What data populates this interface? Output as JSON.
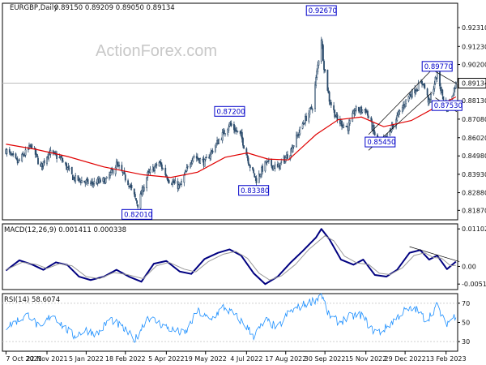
{
  "watermark": "ActionForex.com",
  "chart_data": [
    {
      "type": "candlestick",
      "title": "EURGBP,Daily",
      "ohlc_text": "0.89150 0.89209 0.89050 0.89134",
      "ylim": [
        0.8133,
        0.937
      ],
      "y_ticks": [
        "0.92310",
        "0.91230",
        "0.90200",
        "0.89134",
        "0.88130",
        "0.87080",
        "0.86020",
        "0.84980",
        "0.83930",
        "0.82880",
        "0.81870"
      ],
      "last_price": 0.89134,
      "x_ticks": [
        "7 Oct 2021",
        "22 Nov 2021",
        "5 Jan 2022",
        "18 Feb 2022",
        "5 Apr 2022",
        "19 May 2022",
        "4 Jul 2022",
        "17 Aug 2022",
        "30 Sep 2022",
        "15 Nov 2022",
        "29 Dec 2022",
        "13 Feb 2023"
      ],
      "annotations": [
        {
          "text": "0.82010",
          "x_date": "2022-03-03",
          "y": 0.8201
        },
        {
          "text": "0.87200",
          "x_date": "2022-06-15",
          "y": 0.872
        },
        {
          "text": "0.83380",
          "x_date": "2022-07-12",
          "y": 0.8338
        },
        {
          "text": "0.92670",
          "x_date": "2022-09-26",
          "y": 0.9267
        },
        {
          "text": "0.85450",
          "x_date": "2022-12-01",
          "y": 0.8545
        },
        {
          "text": "0.89770",
          "x_date": "2023-02-03",
          "y": 0.8977
        },
        {
          "text": "0.87530",
          "x_date": "2023-02-14",
          "y": 0.8753
        }
      ],
      "series": [
        {
          "type": "candles",
          "color": "#2c4c6c",
          "path": [
            [
              "2021-10-07",
              0.853
            ],
            [
              "2021-10-20",
              0.846
            ],
            [
              "2021-11-05",
              0.856
            ],
            [
              "2021-11-15",
              0.843
            ],
            [
              "2021-11-24",
              0.852
            ],
            [
              "2021-12-08",
              0.848
            ],
            [
              "2021-12-22",
              0.837
            ],
            [
              "2022-01-10",
              0.834
            ],
            [
              "2022-01-28",
              0.836
            ],
            [
              "2022-02-08",
              0.845
            ],
            [
              "2022-02-22",
              0.834
            ],
            [
              "2022-03-04",
              0.822
            ],
            [
              "2022-03-15",
              0.839
            ],
            [
              "2022-03-28",
              0.846
            ],
            [
              "2022-04-08",
              0.836
            ],
            [
              "2022-04-20",
              0.832
            ],
            [
              "2022-05-05",
              0.85
            ],
            [
              "2022-05-18",
              0.846
            ],
            [
              "2022-06-02",
              0.858
            ],
            [
              "2022-06-15",
              0.868
            ],
            [
              "2022-06-28",
              0.861
            ],
            [
              "2022-07-08",
              0.844
            ],
            [
              "2022-07-15",
              0.836
            ],
            [
              "2022-07-26",
              0.846
            ],
            [
              "2022-08-08",
              0.843
            ],
            [
              "2022-08-22",
              0.852
            ],
            [
              "2022-09-05",
              0.868
            ],
            [
              "2022-09-16",
              0.878
            ],
            [
              "2022-09-26",
              0.917
            ],
            [
              "2022-09-29",
              0.901
            ],
            [
              "2022-10-05",
              0.882
            ],
            [
              "2022-10-14",
              0.87
            ],
            [
              "2022-10-26",
              0.866
            ],
            [
              "2022-11-03",
              0.876
            ],
            [
              "2022-11-15",
              0.876
            ],
            [
              "2022-11-25",
              0.862
            ],
            [
              "2022-12-01",
              0.856
            ],
            [
              "2022-12-09",
              0.861
            ],
            [
              "2022-12-20",
              0.872
            ],
            [
              "2023-01-02",
              0.884
            ],
            [
              "2023-01-10",
              0.888
            ],
            [
              "2023-01-18",
              0.892
            ],
            [
              "2023-01-25",
              0.88
            ],
            [
              "2023-02-03",
              0.897
            ],
            [
              "2023-02-08",
              0.886
            ],
            [
              "2023-02-14",
              0.877
            ],
            [
              "2023-02-20",
              0.885
            ],
            [
              "2023-02-24",
              0.891
            ]
          ]
        },
        {
          "type": "line",
          "name": "moving average",
          "color": "#e00000",
          "points": [
            [
              "2021-10-07",
              0.8565
            ],
            [
              "2021-11-10",
              0.8535
            ],
            [
              "2021-12-15",
              0.8495
            ],
            [
              "2022-01-25",
              0.8435
            ],
            [
              "2022-03-10",
              0.839
            ],
            [
              "2022-04-10",
              0.8375
            ],
            [
              "2022-05-10",
              0.8405
            ],
            [
              "2022-06-10",
              0.849
            ],
            [
              "2022-07-05",
              0.8515
            ],
            [
              "2022-07-28",
              0.848
            ],
            [
              "2022-08-20",
              0.8475
            ],
            [
              "2022-09-20",
              0.862
            ],
            [
              "2022-10-15",
              0.8705
            ],
            [
              "2022-11-10",
              0.872
            ],
            [
              "2022-12-05",
              0.8665
            ],
            [
              "2023-01-05",
              0.87
            ],
            [
              "2023-02-01",
              0.8775
            ],
            [
              "2023-02-24",
              0.8835
            ]
          ]
        },
        {
          "type": "channel",
          "color": "#000000",
          "lines": [
            [
              [
                "2022-11-18",
                0.862
              ],
              [
                "2023-01-28",
                0.899
              ]
            ],
            [
              [
                "2022-11-18",
                0.853
              ],
              [
                "2023-01-28",
                0.886
              ]
            ],
            [
              [
                "2023-02-01",
                0.898
              ],
              [
                "2023-02-25",
                0.891
              ]
            ],
            [
              [
                "2023-02-01",
                0.883
              ],
              [
                "2023-02-25",
                0.875
              ]
            ]
          ]
        }
      ]
    },
    {
      "type": "line",
      "title": "MACD(12,26,9) 0.001411 0.000338",
      "ylim": [
        -0.0068,
        0.0125
      ],
      "y_ticks": [
        "0.011023",
        "0.00",
        "-0.005182"
      ],
      "series": [
        {
          "name": "MACD",
          "color": "#000080",
          "points": [
            [
              "2021-10-07",
              -0.0012
            ],
            [
              "2021-10-22",
              0.0018
            ],
            [
              "2021-11-05",
              0.0006
            ],
            [
              "2021-11-18",
              -0.001
            ],
            [
              "2021-12-02",
              0.0012
            ],
            [
              "2021-12-15",
              0.0004
            ],
            [
              "2021-12-28",
              -0.003
            ],
            [
              "2022-01-10",
              -0.004
            ],
            [
              "2022-01-25",
              -0.003
            ],
            [
              "2022-02-08",
              -0.001
            ],
            [
              "2022-02-22",
              -0.003
            ],
            [
              "2022-03-08",
              -0.0045
            ],
            [
              "2022-03-22",
              0.0008
            ],
            [
              "2022-04-05",
              0.0016
            ],
            [
              "2022-04-20",
              -0.0015
            ],
            [
              "2022-05-03",
              -0.0022
            ],
            [
              "2022-05-18",
              0.0022
            ],
            [
              "2022-06-02",
              0.004
            ],
            [
              "2022-06-15",
              0.005
            ],
            [
              "2022-06-28",
              0.0032
            ],
            [
              "2022-07-12",
              -0.002
            ],
            [
              "2022-07-25",
              -0.0052
            ],
            [
              "2022-08-08",
              -0.003
            ],
            [
              "2022-08-22",
              0.001
            ],
            [
              "2022-09-05",
              0.0045
            ],
            [
              "2022-09-20",
              0.0085
            ],
            [
              "2022-09-26",
              0.011
            ],
            [
              "2022-10-05",
              0.008
            ],
            [
              "2022-10-18",
              0.002
            ],
            [
              "2022-11-01",
              0.0005
            ],
            [
              "2022-11-12",
              0.002
            ],
            [
              "2022-11-25",
              -0.0025
            ],
            [
              "2022-12-08",
              -0.003
            ],
            [
              "2022-12-20",
              -0.001
            ],
            [
              "2023-01-03",
              0.004
            ],
            [
              "2023-01-15",
              0.0048
            ],
            [
              "2023-01-25",
              0.002
            ],
            [
              "2023-02-03",
              0.0032
            ],
            [
              "2023-02-14",
              -0.0008
            ],
            [
              "2023-02-24",
              0.0014
            ]
          ]
        },
        {
          "name": "signal",
          "color": "#999999",
          "points": [
            [
              "2021-10-07",
              -0.001
            ],
            [
              "2021-10-25",
              0.0012
            ],
            [
              "2021-11-10",
              0.0006
            ],
            [
              "2021-11-22",
              -0.0006
            ],
            [
              "2021-12-06",
              0.0008
            ],
            [
              "2021-12-20",
              0.0002
            ],
            [
              "2022-01-05",
              -0.003
            ],
            [
              "2022-01-20",
              -0.0036
            ],
            [
              "2022-02-05",
              -0.0018
            ],
            [
              "2022-02-20",
              -0.0024
            ],
            [
              "2022-03-10",
              -0.0036
            ],
            [
              "2022-03-25",
              0.0002
            ],
            [
              "2022-04-08",
              0.0012
            ],
            [
              "2022-04-25",
              -0.0008
            ],
            [
              "2022-05-08",
              -0.0016
            ],
            [
              "2022-05-22",
              0.0014
            ],
            [
              "2022-06-08",
              0.0036
            ],
            [
              "2022-06-22",
              0.0044
            ],
            [
              "2022-07-05",
              0.0024
            ],
            [
              "2022-07-18",
              -0.002
            ],
            [
              "2022-07-30",
              -0.004
            ],
            [
              "2022-08-12",
              -0.0028
            ],
            [
              "2022-08-28",
              0.0006
            ],
            [
              "2022-09-12",
              0.005
            ],
            [
              "2022-09-30",
              0.009
            ],
            [
              "2022-10-10",
              0.0075
            ],
            [
              "2022-10-22",
              0.003
            ],
            [
              "2022-11-05",
              0.001
            ],
            [
              "2022-11-18",
              0.0006
            ],
            [
              "2022-11-30",
              -0.002
            ],
            [
              "2022-12-12",
              -0.0024
            ],
            [
              "2022-12-26",
              -0.0004
            ],
            [
              "2023-01-08",
              0.0032
            ],
            [
              "2023-01-20",
              0.004
            ],
            [
              "2023-01-30",
              0.0026
            ],
            [
              "2023-02-08",
              0.0024
            ],
            [
              "2023-02-18",
              0.0002
            ],
            [
              "2023-02-24",
              0.0003
            ]
          ]
        },
        {
          "name": "trend-line",
          "color": "#000000",
          "points": [
            [
              "2023-01-03",
              0.0058
            ],
            [
              "2023-02-28",
              0.0014
            ]
          ]
        }
      ]
    },
    {
      "type": "line",
      "title": "RSI(14) 58.6074",
      "ylim": [
        20,
        80
      ],
      "y_ticks": [
        "70",
        "50",
        "30"
      ],
      "series": [
        {
          "name": "RSI",
          "color": "#1e90ff",
          "points": [
            [
              "2021-10-07",
              45
            ],
            [
              "2021-10-20",
              52
            ],
            [
              "2021-11-02",
              58
            ],
            [
              "2021-11-15",
              42
            ],
            [
              "2021-11-28",
              60
            ],
            [
              "2021-12-10",
              46
            ],
            [
              "2021-12-22",
              36
            ],
            [
              "2022-01-05",
              42
            ],
            [
              "2022-01-18",
              38
            ],
            [
              "2022-02-01",
              54
            ],
            [
              "2022-02-15",
              44
            ],
            [
              "2022-03-01",
              32
            ],
            [
              "2022-03-15",
              56
            ],
            [
              "2022-03-30",
              48
            ],
            [
              "2022-04-12",
              42
            ],
            [
              "2022-04-26",
              38
            ],
            [
              "2022-05-10",
              62
            ],
            [
              "2022-05-24",
              52
            ],
            [
              "2022-06-08",
              66
            ],
            [
              "2022-06-20",
              58
            ],
            [
              "2022-07-02",
              48
            ],
            [
              "2022-07-12",
              36
            ],
            [
              "2022-07-26",
              52
            ],
            [
              "2022-08-08",
              44
            ],
            [
              "2022-08-20",
              60
            ],
            [
              "2022-09-05",
              68
            ],
            [
              "2022-09-20",
              74
            ],
            [
              "2022-09-26",
              80
            ],
            [
              "2022-10-04",
              58
            ],
            [
              "2022-10-16",
              50
            ],
            [
              "2022-10-28",
              56
            ],
            [
              "2022-11-10",
              58
            ],
            [
              "2022-11-22",
              42
            ],
            [
              "2022-12-02",
              40
            ],
            [
              "2022-12-14",
              50
            ],
            [
              "2022-12-28",
              62
            ],
            [
              "2023-01-10",
              64
            ],
            [
              "2023-01-22",
              52
            ],
            [
              "2023-02-03",
              68
            ],
            [
              "2023-02-12",
              48
            ],
            [
              "2023-02-20",
              54
            ],
            [
              "2023-02-24",
              58
            ]
          ]
        }
      ]
    }
  ]
}
